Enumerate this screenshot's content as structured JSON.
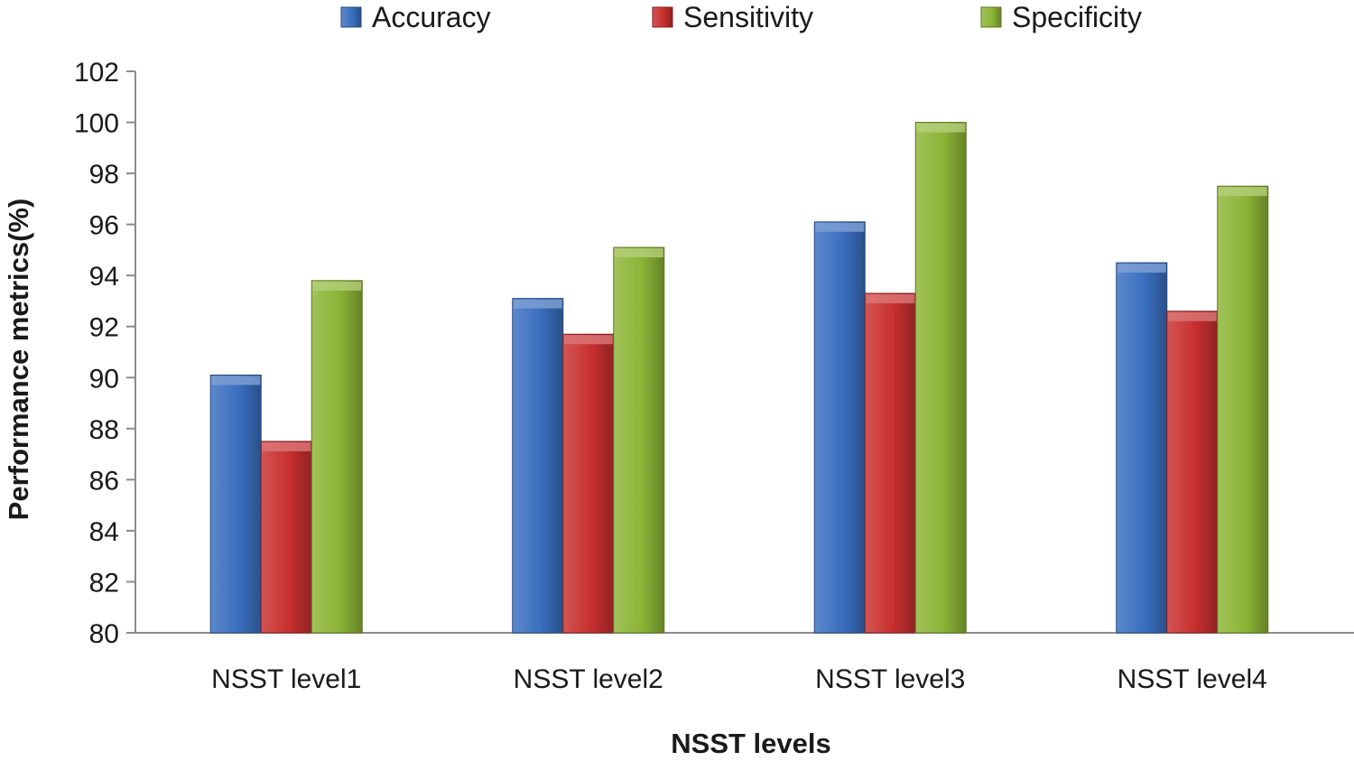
{
  "chart_data": {
    "type": "bar",
    "categories": [
      "NSST level1",
      "NSST level2",
      "NSST level3",
      "NSST level4"
    ],
    "series": [
      {
        "name": "Accuracy",
        "values": [
          90.1,
          93.1,
          96.1,
          94.5
        ],
        "color": "#3a6fbf"
      },
      {
        "name": "Sensitivity",
        "values": [
          87.5,
          91.7,
          93.3,
          92.6
        ],
        "color": "#c8302f"
      },
      {
        "name": "Specificity",
        "values": [
          93.8,
          95.1,
          100.0,
          97.5
        ],
        "color": "#8cb536"
      }
    ],
    "title": "",
    "xlabel": "NSST levels",
    "ylabel": "Performance metrics(%)",
    "ylim": [
      80,
      102
    ],
    "yticks": [
      80,
      82,
      84,
      86,
      88,
      90,
      92,
      94,
      96,
      98,
      100,
      102
    ],
    "legend_position": "top",
    "grid": false
  }
}
